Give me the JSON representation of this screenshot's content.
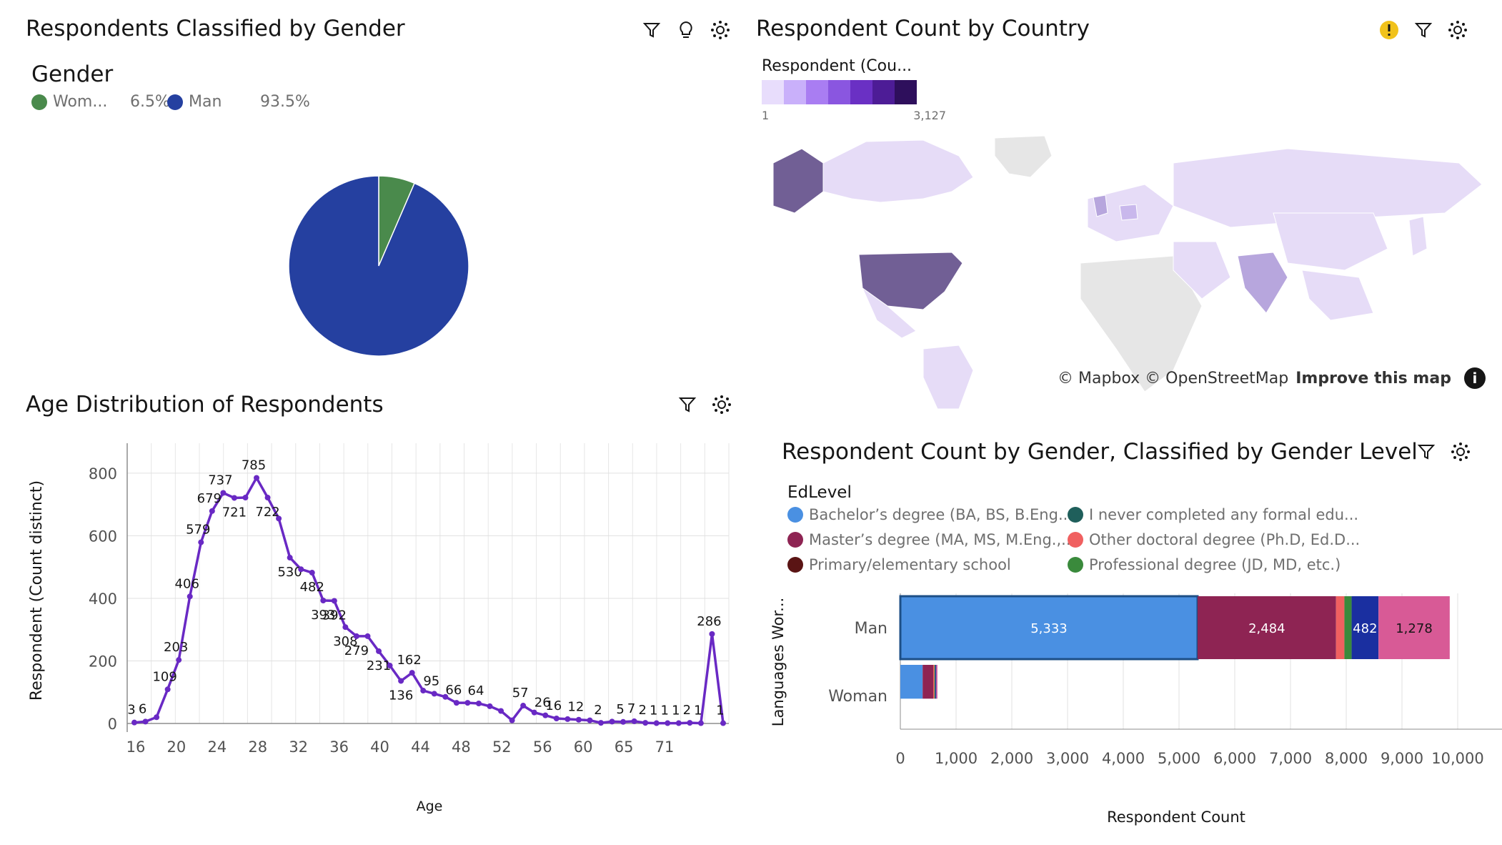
{
  "colors": {
    "woman": "#4a8a4c",
    "man": "#2540a0",
    "line": "#6929c4",
    "edu": [
      "#4a90e2",
      "#1f5f5b",
      "#8e2453",
      "#f06060",
      "#5a1414",
      "#3a8a3c",
      "#1a2fa0",
      "#d85a96"
    ]
  },
  "cards": {
    "gender": {
      "title": "Respondents Classified by Gender",
      "legend_title": "Gender"
    },
    "country": {
      "title": "Respondent Count by Country",
      "legend_title": "Respondent (Cou...",
      "legend_min": "1",
      "legend_max": "3,127",
      "attribution": "© Mapbox © OpenStreetMap",
      "improve_link": "Improve this map"
    },
    "age": {
      "title": "Age Distribution of Respondents"
    },
    "edlevel": {
      "title": "Respondent Count by Gender, Classified by Gender Level",
      "legend_title": "EdLevel"
    }
  },
  "chart_data": [
    {
      "type": "pie",
      "title": "Respondents Classified by Gender",
      "legend": [
        {
          "label": "Wom...",
          "percent": "6.5%",
          "value": 6.5
        },
        {
          "label": "Man",
          "percent": "93.5%",
          "value": 93.5
        }
      ]
    },
    {
      "type": "line",
      "title": "Age Distribution of Respondents",
      "xlabel": "Age",
      "ylabel": "Respondent (Count distinct)",
      "ylim": [
        0,
        850
      ],
      "y_ticks": [
        0,
        200,
        400,
        600,
        800
      ],
      "x_ticks": [
        "16",
        "20",
        "24",
        "28",
        "32",
        "36",
        "40",
        "44",
        "48",
        "52",
        "56",
        "60",
        "65",
        "71"
      ],
      "points": [
        {
          "x": 16,
          "y": 3,
          "label": "3"
        },
        {
          "x": 17,
          "y": 6,
          "label": "6"
        },
        {
          "x": 18,
          "y": 20
        },
        {
          "x": 19,
          "y": 109,
          "label": "109"
        },
        {
          "x": 20,
          "y": 203,
          "label": "203"
        },
        {
          "x": 21,
          "y": 406,
          "label": "406"
        },
        {
          "x": 22,
          "y": 579,
          "label": "579"
        },
        {
          "x": 23,
          "y": 679,
          "label": "679"
        },
        {
          "x": 24,
          "y": 737,
          "label": "737"
        },
        {
          "x": 25,
          "y": 721,
          "label": "721"
        },
        {
          "x": 26,
          "y": 722
        },
        {
          "x": 27,
          "y": 785,
          "label": "785"
        },
        {
          "x": 28,
          "y": 722,
          "label": "722"
        },
        {
          "x": 29,
          "y": 655
        },
        {
          "x": 30,
          "y": 530,
          "label": "530"
        },
        {
          "x": 31,
          "y": 493
        },
        {
          "x": 32,
          "y": 482,
          "label": "482"
        },
        {
          "x": 33,
          "y": 393,
          "label": "393"
        },
        {
          "x": 34,
          "y": 392,
          "label": "392"
        },
        {
          "x": 35,
          "y": 308,
          "label": "308"
        },
        {
          "x": 36,
          "y": 279,
          "label": "279"
        },
        {
          "x": 37,
          "y": 279
        },
        {
          "x": 38,
          "y": 231,
          "label": "231"
        },
        {
          "x": 39,
          "y": 185
        },
        {
          "x": 40,
          "y": 136,
          "label": "136"
        },
        {
          "x": 41,
          "y": 162,
          "label": "162"
        },
        {
          "x": 42,
          "y": 105
        },
        {
          "x": 43,
          "y": 95,
          "label": "95"
        },
        {
          "x": 44,
          "y": 85
        },
        {
          "x": 45,
          "y": 66,
          "label": "66"
        },
        {
          "x": 46,
          "y": 66
        },
        {
          "x": 47,
          "y": 64,
          "label": "64"
        },
        {
          "x": 48,
          "y": 55
        },
        {
          "x": 49,
          "y": 40
        },
        {
          "x": 50,
          "y": 10
        },
        {
          "x": 51,
          "y": 57,
          "label": "57"
        },
        {
          "x": 52,
          "y": 35
        },
        {
          "x": 53,
          "y": 26,
          "label": "26"
        },
        {
          "x": 54,
          "y": 16,
          "label": "16"
        },
        {
          "x": 55,
          "y": 14
        },
        {
          "x": 56,
          "y": 12,
          "label": "12"
        },
        {
          "x": 57,
          "y": 10
        },
        {
          "x": 58,
          "y": 2,
          "label": "2"
        },
        {
          "x": 59,
          "y": 6
        },
        {
          "x": 60,
          "y": 5,
          "label": "5"
        },
        {
          "x": 61,
          "y": 7,
          "label": "7"
        },
        {
          "x": 62,
          "y": 2,
          "label": "2"
        },
        {
          "x": 63,
          "y": 1,
          "label": "1"
        },
        {
          "x": 64,
          "y": 1,
          "label": "1"
        },
        {
          "x": 65,
          "y": 1,
          "label": "1"
        },
        {
          "x": 66,
          "y": 2,
          "label": "2"
        },
        {
          "x": 67,
          "y": 1,
          "label": "1"
        },
        {
          "x": 68,
          "y": 286,
          "label": "286"
        },
        {
          "x": 69,
          "y": 1,
          "label": "1"
        }
      ]
    },
    {
      "type": "bar",
      "orientation": "horizontal",
      "stacked": true,
      "title": "Respondent Count by Gender, Classified by Gender Level",
      "xlabel": "Respondent Count",
      "ylabel": "Languages Wor...",
      "xlim": [
        0,
        10000
      ],
      "x_ticks": [
        "0",
        "1,000",
        "2,000",
        "3,000",
        "4,000",
        "5,000",
        "6,000",
        "7,000",
        "8,000",
        "9,000",
        "10,000"
      ],
      "categories": [
        "Man",
        "Woman"
      ],
      "legend_title": "EdLevel",
      "series": [
        {
          "name": "Bachelor’s degree (BA, BS, B.Eng....",
          "values": [
            5333,
            400
          ],
          "label": "5,333"
        },
        {
          "name": "I never completed any formal edu...",
          "values": [
            0,
            0
          ]
        },
        {
          "name": "Master’s degree (MA, MS, M.Eng.,...",
          "values": [
            2484,
            190
          ],
          "label": "2,484"
        },
        {
          "name": "Other doctoral degree (Ph.D, Ed.D...",
          "values": [
            150,
            20
          ]
        },
        {
          "name": "Primary/elementary school",
          "values": [
            0,
            0
          ]
        },
        {
          "name": "Professional degree (JD, MD, etc.)",
          "values": [
            130,
            15
          ]
        },
        {
          "name": "",
          "values": [
            482,
            20
          ],
          "label": "482"
        },
        {
          "name": "",
          "values": [
            1278,
            20
          ],
          "label": "1,278"
        }
      ]
    }
  ]
}
